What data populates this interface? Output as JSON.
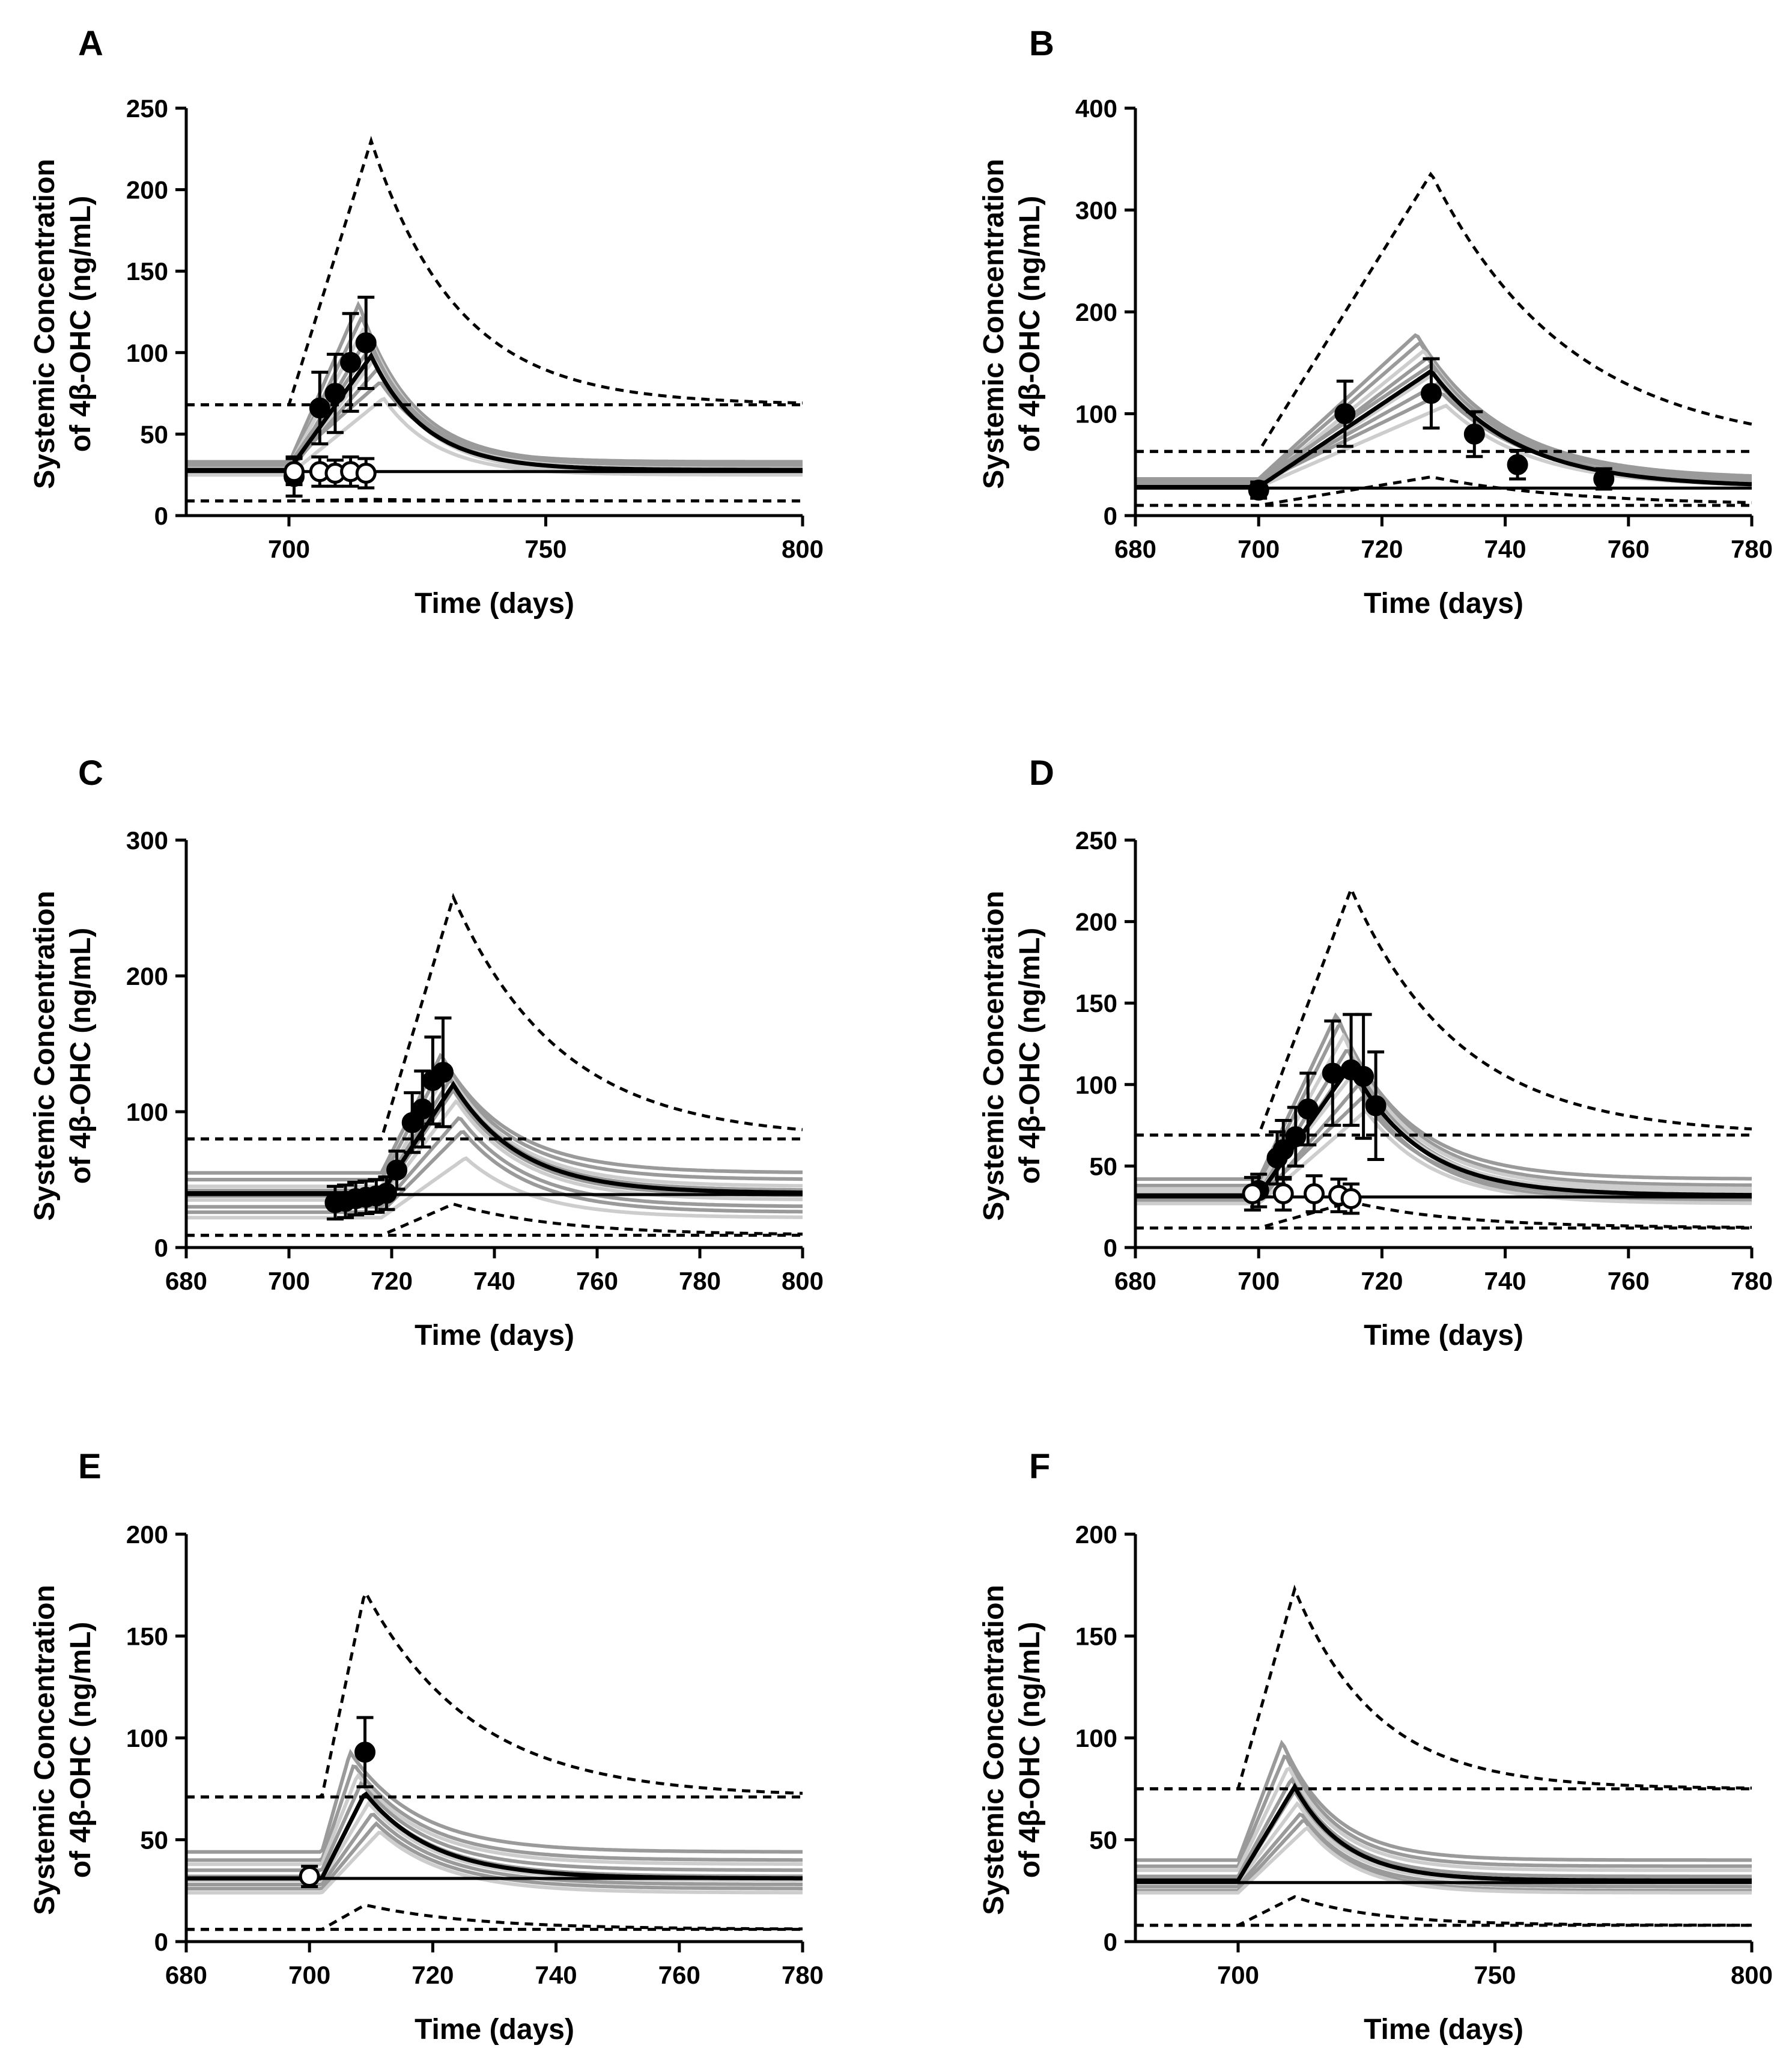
{
  "figure": {
    "y_axis_title_line1": "Systemic Concentration",
    "y_axis_title_line2": "of 4β-OHC (ng/mL)",
    "x_axis_title": "Time (days)"
  },
  "colors": {
    "observed_filled": "#000000",
    "observed_open": "#ffffff",
    "median": "#000000",
    "individual_dark": "#9a9a9a",
    "individual_light": "#cdcdcd"
  },
  "chart_data": [
    {
      "panel": "A",
      "type": "line",
      "xlabel": "Time (days)",
      "ylabel": "Systemic Concentration of 4β-OHC (ng/mL)",
      "xlim": [
        680,
        800
      ],
      "ylim": [
        0,
        250
      ],
      "xticks": [
        700,
        750,
        800
      ],
      "xtick_labels": [
        "700",
        "750",
        "800"
      ],
      "yticks": [
        0,
        50,
        100,
        150,
        200,
        250
      ],
      "ytick_labels": [
        "0",
        "50",
        "100",
        "150",
        "200",
        "250"
      ],
      "start": 700,
      "peak_t": 716,
      "tau": 10.5,
      "baseline": 28,
      "baseline_line_y": 27,
      "median_peak": 98,
      "upper_base": 68,
      "upper_peak": 230,
      "lower_base": 9,
      "lower_peak": 10,
      "individual_peaks": [
        130,
        122,
        116,
        110,
        104,
        96,
        90,
        82,
        72
      ],
      "individual_bases": [
        32,
        29,
        30,
        27,
        31,
        26,
        28,
        33,
        25
      ],
      "observed_filled": [
        {
          "x": 701,
          "y": 24,
          "err": 12
        },
        {
          "x": 706,
          "y": 66,
          "err": 22
        },
        {
          "x": 709,
          "y": 75,
          "err": 24
        },
        {
          "x": 712,
          "y": 94,
          "err": 30
        },
        {
          "x": 715,
          "y": 106,
          "err": 28
        }
      ],
      "observed_open": [
        {
          "x": 701,
          "y": 27,
          "err": 8
        },
        {
          "x": 706,
          "y": 27,
          "err": 9
        },
        {
          "x": 709,
          "y": 26,
          "err": 8
        },
        {
          "x": 712,
          "y": 27,
          "err": 9
        },
        {
          "x": 715,
          "y": 26,
          "err": 9
        }
      ]
    },
    {
      "panel": "B",
      "type": "line",
      "xlabel": "Time (days)",
      "ylabel": "Systemic Concentration of 4β-OHC (ng/mL)",
      "xlim": [
        680,
        780
      ],
      "ylim": [
        0,
        400
      ],
      "xticks": [
        680,
        700,
        720,
        740,
        760,
        780
      ],
      "xtick_labels": [
        "680",
        "700",
        "720",
        "740",
        "760",
        "780"
      ],
      "yticks": [
        0,
        100,
        200,
        300,
        400
      ],
      "ytick_labels": [
        "0",
        "100",
        "200",
        "300",
        "400"
      ],
      "start": 700,
      "peak_t": 728,
      "tau": 14,
      "baseline": 28,
      "baseline_line_y": 27,
      "median_peak": 142,
      "upper_base": 63,
      "upper_peak": 336,
      "lower_base": 10,
      "lower_peak": 38,
      "individual_peaks": [
        178,
        170,
        162,
        155,
        148,
        140,
        130,
        120,
        108
      ],
      "individual_bases": [
        36,
        33,
        30,
        29,
        34,
        27,
        31,
        32,
        28
      ],
      "observed_filled": [
        {
          "x": 700,
          "y": 25,
          "err": 8
        },
        {
          "x": 714,
          "y": 100,
          "err": 32
        },
        {
          "x": 728,
          "y": 120,
          "err": 34
        },
        {
          "x": 735,
          "y": 80,
          "err": 22
        },
        {
          "x": 742,
          "y": 50,
          "err": 14
        },
        {
          "x": 756,
          "y": 36,
          "err": 10
        }
      ],
      "observed_open": []
    },
    {
      "panel": "C",
      "type": "line",
      "xlabel": "Time (days)",
      "ylabel": "Systemic Concentration of 4β-OHC (ng/mL)",
      "xlim": [
        680,
        800
      ],
      "ylim": [
        0,
        300
      ],
      "xticks": [
        680,
        700,
        720,
        740,
        760,
        780,
        800
      ],
      "xtick_labels": [
        "680",
        "700",
        "720",
        "740",
        "760",
        "780",
        "800"
      ],
      "yticks": [
        0,
        100,
        200,
        300
      ],
      "ytick_labels": [
        "0",
        "100",
        "200",
        "300"
      ],
      "start": 718,
      "peak_t": 732,
      "tau": 13,
      "baseline": 40,
      "baseline_line_y": 39,
      "median_peak": 120,
      "upper_base": 80,
      "upper_peak": 258,
      "lower_base": 9,
      "lower_peak": 32,
      "individual_peaks": [
        142,
        136,
        130,
        124,
        116,
        108,
        96,
        86,
        66
      ],
      "individual_bases": [
        55,
        50,
        45,
        42,
        38,
        35,
        30,
        26,
        22
      ],
      "observed_filled": [
        {
          "x": 709,
          "y": 33,
          "err": 12
        },
        {
          "x": 711,
          "y": 34,
          "err": 12
        },
        {
          "x": 713,
          "y": 36,
          "err": 12
        },
        {
          "x": 715,
          "y": 37,
          "err": 12
        },
        {
          "x": 717,
          "y": 38,
          "err": 12
        },
        {
          "x": 719,
          "y": 40,
          "err": 12
        },
        {
          "x": 721,
          "y": 57,
          "err": 14
        },
        {
          "x": 724,
          "y": 92,
          "err": 22
        },
        {
          "x": 726,
          "y": 102,
          "err": 28
        },
        {
          "x": 728,
          "y": 123,
          "err": 32
        },
        {
          "x": 730,
          "y": 129,
          "err": 40
        }
      ],
      "observed_open": []
    },
    {
      "panel": "D",
      "type": "line",
      "xlabel": "Time (days)",
      "ylabel": "Systemic Concentration of 4β-OHC (ng/mL)",
      "xlim": [
        680,
        780
      ],
      "ylim": [
        0,
        250
      ],
      "xticks": [
        680,
        700,
        720,
        740,
        760,
        780
      ],
      "xtick_labels": [
        "680",
        "700",
        "720",
        "740",
        "760",
        "780"
      ],
      "yticks": [
        0,
        50,
        100,
        150,
        200,
        250
      ],
      "ytick_labels": [
        "0",
        "50",
        "100",
        "150",
        "200",
        "250"
      ],
      "start": 700,
      "peak_t": 715,
      "tau": 11,
      "baseline": 32,
      "baseline_line_y": 31,
      "median_peak": 112,
      "upper_base": 69,
      "upper_peak": 220,
      "lower_base": 12,
      "lower_peak": 28,
      "individual_peaks": [
        143,
        138,
        130,
        122,
        115,
        108,
        100,
        92,
        84
      ],
      "individual_bases": [
        42,
        38,
        36,
        33,
        30,
        34,
        28,
        31,
        27
      ],
      "observed_filled": [
        {
          "x": 700,
          "y": 35,
          "err": 10
        },
        {
          "x": 703,
          "y": 55,
          "err": 16
        },
        {
          "x": 704,
          "y": 60,
          "err": 18
        },
        {
          "x": 706,
          "y": 68,
          "err": 18
        },
        {
          "x": 708,
          "y": 85,
          "err": 22
        },
        {
          "x": 712,
          "y": 107,
          "err": 32
        },
        {
          "x": 715,
          "y": 109,
          "err": 34
        },
        {
          "x": 717,
          "y": 105,
          "err": 38
        },
        {
          "x": 719,
          "y": 87,
          "err": 33
        }
      ],
      "observed_open": [
        {
          "x": 699,
          "y": 33,
          "err": 10
        },
        {
          "x": 704,
          "y": 33,
          "err": 10
        },
        {
          "x": 709,
          "y": 33,
          "err": 11
        },
        {
          "x": 713,
          "y": 32,
          "err": 10
        },
        {
          "x": 715,
          "y": 30,
          "err": 9
        }
      ]
    },
    {
      "panel": "E",
      "type": "line",
      "xlabel": "Time (days)",
      "ylabel": "Systemic Concentration of 4β-OHC (ng/mL)",
      "xlim": [
        680,
        780
      ],
      "ylim": [
        0,
        200
      ],
      "xticks": [
        680,
        700,
        720,
        740,
        760,
        780
      ],
      "xtick_labels": [
        "680",
        "700",
        "720",
        "740",
        "760",
        "780"
      ],
      "yticks": [
        0,
        50,
        100,
        150,
        200
      ],
      "ytick_labels": [
        "0",
        "50",
        "100",
        "150",
        "200"
      ],
      "start": 702,
      "peak_t": 709,
      "tau": 11,
      "baseline": 31,
      "baseline_line_y": 31,
      "median_peak": 73,
      "upper_base": 71,
      "upper_peak": 172,
      "lower_base": 6,
      "lower_peak": 18,
      "individual_peaks": [
        93,
        87,
        82,
        78,
        73,
        68,
        63,
        58,
        54
      ],
      "individual_bases": [
        44,
        40,
        38,
        35,
        32,
        30,
        28,
        26,
        24
      ],
      "observed_filled": [
        {
          "x": 709,
          "y": 93,
          "err": 17
        }
      ],
      "observed_open": [
        {
          "x": 700,
          "y": 32,
          "err": 5
        }
      ]
    },
    {
      "panel": "F",
      "type": "line",
      "xlabel": "Time (days)",
      "ylabel": "Systemic Concentration of 4β-OHC (ng/mL)",
      "xlim": [
        680,
        800
      ],
      "ylim": [
        0,
        200
      ],
      "xticks": [
        700,
        750,
        800
      ],
      "xtick_labels": [
        "700",
        "750",
        "800"
      ],
      "yticks": [
        0,
        50,
        100,
        150,
        200
      ],
      "ytick_labels": [
        "0",
        "50",
        "100",
        "150",
        "200"
      ],
      "start": 700,
      "peak_t": 711,
      "tau": 10,
      "baseline": 30,
      "baseline_line_y": 29,
      "median_peak": 76,
      "upper_base": 75,
      "upper_peak": 173,
      "lower_base": 8,
      "lower_peak": 22,
      "individual_peaks": [
        98,
        92,
        86,
        80,
        74,
        68,
        63,
        60,
        56
      ],
      "individual_bases": [
        40,
        37,
        35,
        32,
        30,
        29,
        27,
        25,
        24
      ],
      "observed_filled": [],
      "observed_open": []
    }
  ]
}
